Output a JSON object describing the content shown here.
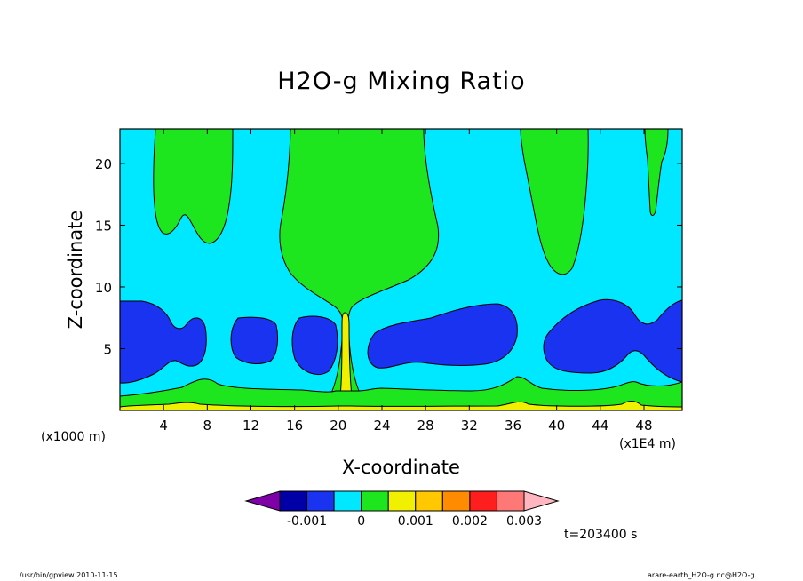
{
  "chart_data": {
    "type": "heatmap",
    "title": "H2O-g Mixing Ratio",
    "xlabel": "X-coordinate",
    "ylabel": "Z-coordinate",
    "x_unit_left": "(x1000 m)",
    "x_unit_right": "(x1E4 m)",
    "xlim": [
      0,
      51.5
    ],
    "ylim": [
      0,
      22.8
    ],
    "x_ticks": [
      4,
      8,
      12,
      16,
      20,
      24,
      28,
      32,
      36,
      40,
      44,
      48
    ],
    "y_ticks": [
      5,
      10,
      15,
      20
    ],
    "colorbar": {
      "levels": [
        -0.0015,
        -0.001,
        -0.0005,
        0,
        0.0005,
        0.001,
        0.0015,
        0.002,
        0.0025,
        0.003
      ],
      "tick_labels": [
        "-0.001",
        "0",
        "0.001",
        "0.002",
        "0.003"
      ],
      "tick_values": [
        -0.001,
        0,
        0.001,
        0.002,
        0.003
      ],
      "colors": [
        "#7f00a8",
        "#0000a6",
        "#1a33f0",
        "#00e8ff",
        "#1ee61e",
        "#f0f000",
        "#ffc800",
        "#ff8c00",
        "#ff1e1e",
        "#ff7878",
        "#ffb6c1"
      ]
    },
    "regions": {
      "background_level": "0 to 0.0005 (cyan)",
      "upper_green_plumes": "0.0005 to 0.001",
      "mid_blue_cells": "-0.0005 to 0",
      "surface_layers": "green and yellow near z < 3",
      "central_yellow_spike_x": 20.6
    },
    "time_label": "t=203400 s"
  },
  "footer": {
    "left": "/usr/bin/gpview   2010-11-15",
    "right": "arare-earth_H2O-g.nc@H2O-g"
  },
  "colors": {
    "cyan": "#00e8ff",
    "green": "#1ee61e",
    "blue": "#1a33f0",
    "yellow": "#f0f000"
  }
}
